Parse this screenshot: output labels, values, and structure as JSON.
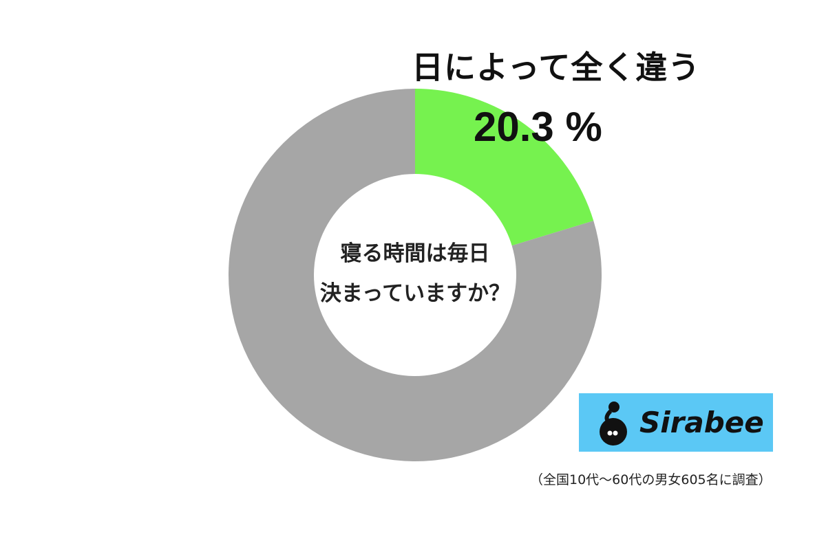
{
  "chart_data": {
    "type": "pie",
    "subtype": "donut",
    "title": "寝る時間は毎日決まっていますか？",
    "title_lines": [
      "寝る時間は毎日",
      "決まっていますか？"
    ],
    "slices": [
      {
        "name": "日によって全く違う",
        "value": 20.3,
        "color": "#76f24f",
        "label": "20.3 %"
      },
      {
        "value": 79.7,
        "color": "#a6a6a6"
      }
    ]
  },
  "highlight": {
    "label": "日によって全く違う",
    "value": "20.3 %"
  },
  "logo": {
    "text": "Sirabee",
    "color": "#5bc8f5"
  },
  "footnote": "（全国10代～60代の男女605名に調査）"
}
